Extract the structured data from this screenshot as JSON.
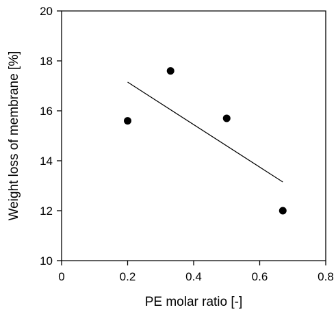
{
  "chart_data": {
    "type": "scatter",
    "xlabel": "PE molar ratio [-]",
    "ylabel": "Weight loss of membrane [%]",
    "xlim": [
      0,
      0.8
    ],
    "ylim": [
      10,
      20
    ],
    "x_ticks": [
      0,
      0.2,
      0.4,
      0.6,
      0.8
    ],
    "x_tick_labels": [
      "0",
      "0.2",
      "0.4",
      "0.6",
      "0.8"
    ],
    "y_ticks": [
      10,
      12,
      14,
      16,
      18,
      20
    ],
    "y_tick_labels": [
      "10",
      "12",
      "14",
      "16",
      "18",
      "20"
    ],
    "grid": false,
    "series": [
      {
        "type": "scatter",
        "marker": "filled-circle",
        "color": "#000000",
        "points": [
          {
            "x": 0.2,
            "y": 15.6
          },
          {
            "x": 0.33,
            "y": 17.6
          },
          {
            "x": 0.5,
            "y": 15.7
          },
          {
            "x": 0.67,
            "y": 12.0
          }
        ]
      },
      {
        "type": "line",
        "style": "linear-fit",
        "color": "#000000",
        "points": [
          {
            "x": 0.2,
            "y": 17.15
          },
          {
            "x": 0.67,
            "y": 13.15
          }
        ]
      }
    ]
  }
}
